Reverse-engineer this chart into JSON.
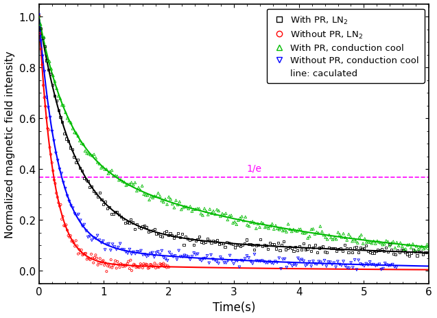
{
  "title": "",
  "xlabel": "Time(s)",
  "ylabel": "Normalized magnetic field intensity",
  "xlim": [
    0,
    6
  ],
  "ylim": [
    -0.05,
    1.05
  ],
  "xticks": [
    0,
    1,
    2,
    3,
    4,
    5,
    6
  ],
  "yticks": [
    0.0,
    0.2,
    0.4,
    0.6,
    0.8,
    1.0
  ],
  "one_over_e": 0.3679,
  "one_over_e_label": "1/e",
  "legend_entries": [
    "With PR, LN$_2$",
    "Without PR, LN$_2$",
    "With PR, conduction cool",
    "Without PR, conduction cool",
    "line: caculated"
  ],
  "series": {
    "with_pr_ln2": {
      "A1": 0.85,
      "tau1": 0.55,
      "A2": 0.15,
      "tau2": 8.0,
      "color": "#000000",
      "marker": "s"
    },
    "without_pr_ln2": {
      "A1": 0.97,
      "tau1": 0.22,
      "A2": 0.03,
      "tau2": 3.0,
      "color": "#ff0000",
      "marker": "o"
    },
    "with_pr_cond": {
      "A1": 0.55,
      "tau1": 0.45,
      "A2": 0.45,
      "tau2": 3.8,
      "color": "#00bb00",
      "marker": "^"
    },
    "without_pr_cond": {
      "A1": 0.9,
      "tau1": 0.3,
      "A2": 0.1,
      "tau2": 3.5,
      "color": "#0000ff",
      "marker": "v"
    }
  },
  "dashed_line_color": "#ff00ff",
  "background_color": "#ffffff",
  "noise_std": 0.01
}
